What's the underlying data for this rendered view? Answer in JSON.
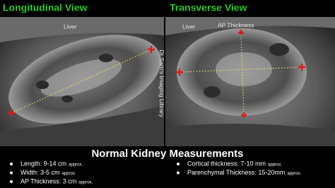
{
  "panels": [
    {
      "title": "Longitudinal View",
      "labels": [
        "Liver"
      ]
    },
    {
      "title": "Transverse View",
      "labels": [
        "Liver",
        "AP Thickness"
      ]
    }
  ],
  "watermark": "Dr Sam's Imaging Library",
  "footer": {
    "title": "Normal Kidney Measurements",
    "left_items": [
      {
        "text": "Length: 9-14 cm",
        "note": "approx."
      },
      {
        "text": "Width: 3-5 cm",
        "note": "approx."
      },
      {
        "text": "AP Thickness: 3 cm",
        "note": "approx."
      }
    ],
    "right_items": [
      {
        "text": "Cortical thickness: 7-10 mm",
        "note": "approx."
      },
      {
        "text": "Parenchymal Thickness: 15-20mm",
        "note": "approx."
      }
    ]
  }
}
